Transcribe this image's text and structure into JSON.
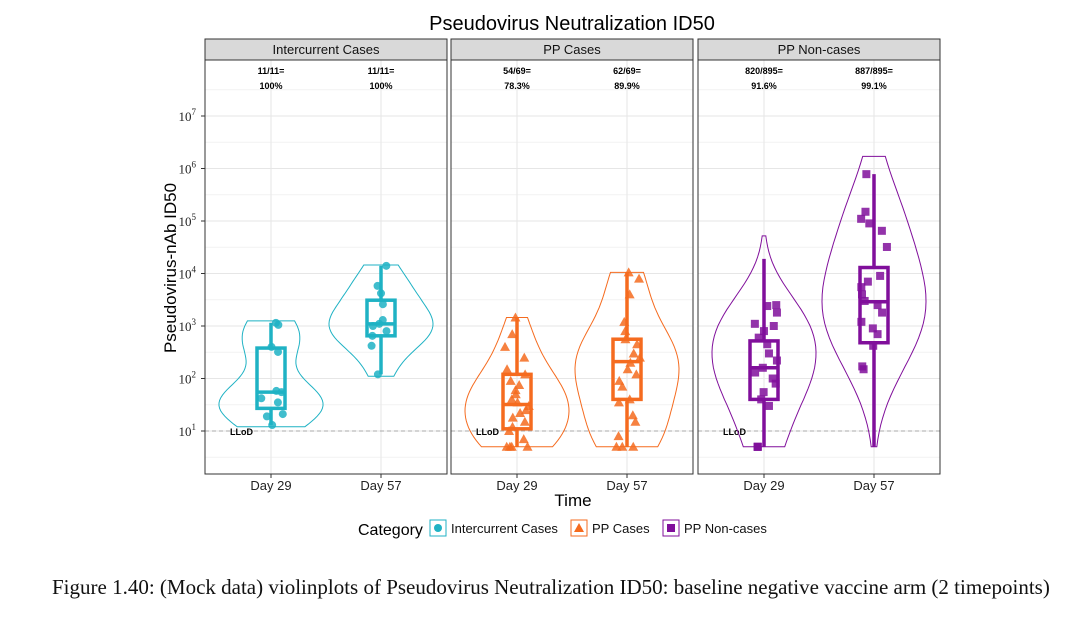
{
  "figure": {
    "caption": "Figure 1.40: (Mock data) violinplots of Pseudovirus Neutralization ID50: baseline negative vaccine arm (2 timepoints)"
  },
  "chart_data": {
    "type": "violin",
    "title": "Pseudovirus Neutralization ID50",
    "xlabel": "Time",
    "ylabel": "Pseudovirus-nAb ID50",
    "y_scale": "log10",
    "ylim": [
      3.5,
      30000000
    ],
    "y_ticks": [
      {
        "value": 10,
        "label": "10",
        "exp": "1"
      },
      {
        "value": 100,
        "label": "10",
        "exp": "2"
      },
      {
        "value": 1000,
        "label": "10",
        "exp": "3"
      },
      {
        "value": 10000,
        "label": "10",
        "exp": "4"
      },
      {
        "value": 100000,
        "label": "10",
        "exp": "5"
      },
      {
        "value": 1000000,
        "label": "10",
        "exp": "6"
      },
      {
        "value": 10000000,
        "label": "10",
        "exp": "7"
      }
    ],
    "categories": [
      "Day 29",
      "Day 57"
    ],
    "lod": {
      "value": 10,
      "label": "LLoD"
    },
    "grid": true,
    "legend": {
      "title": "Category",
      "position": "bottom",
      "entries": [
        {
          "name": "Intercurrent Cases",
          "color": "#1fb2c4",
          "shape": "circle"
        },
        {
          "name": "PP Cases",
          "color": "#f56b1f",
          "shape": "triangle"
        },
        {
          "name": "PP Non-cases",
          "color": "#800f9b",
          "shape": "square"
        }
      ]
    },
    "panels": [
      {
        "name": "Intercurrent Cases",
        "color": "#1fb2c4",
        "shape": "circle",
        "groups": [
          {
            "x": "Day 29",
            "resp_line1": "11/11=",
            "resp_line2": "100%",
            "box": {
              "min": 13,
              "q1": 27,
              "median": 55,
              "q3": 380,
              "max": 1150
            },
            "violin_range": [
              12,
              1250
            ],
            "points": [
              13,
              19,
              21,
              35,
              42,
              55,
              58,
              320,
              400,
              1050,
              1150
            ]
          },
          {
            "x": "Day 57",
            "resp_line1": "11/11=",
            "resp_line2": "100%",
            "box": {
              "min": 120,
              "q1": 650,
              "median": 1100,
              "q3": 3100,
              "max": 14000
            },
            "violin_range": [
              110,
              14500
            ],
            "points": [
              120,
              420,
              650,
              800,
              1000,
              1100,
              1300,
              2600,
              4200,
              5800,
              14000
            ]
          }
        ]
      },
      {
        "name": "PP Cases",
        "color": "#f56b1f",
        "shape": "triangle",
        "groups": [
          {
            "x": "Day 29",
            "resp_line1": "54/69=",
            "resp_line2": "78.3%",
            "box": {
              "min": 5,
              "q1": 11,
              "median": 32,
              "q3": 120,
              "max": 1450
            },
            "violin_range": [
              5,
              1450
            ],
            "points": [
              5,
              5,
              5,
              5,
              7,
              10,
              12,
              15,
              18,
              22,
              25,
              30,
              35,
              40,
              50,
              60,
              75,
              90,
              120,
              150,
              250,
              400,
              700,
              1450
            ]
          },
          {
            "x": "Day 57",
            "resp_line1": "62/69=",
            "resp_line2": "89.9%",
            "box": {
              "min": 5,
              "q1": 40,
              "median": 210,
              "q3": 560,
              "max": 10500
            },
            "violin_range": [
              5,
              10500
            ],
            "points": [
              5,
              5,
              5,
              8,
              15,
              20,
              35,
              40,
              70,
              90,
              120,
              150,
              200,
              250,
              300,
              450,
              560,
              800,
              1200,
              4000,
              8000,
              10500
            ]
          }
        ]
      },
      {
        "name": "PP Non-cases",
        "color": "#800f9b",
        "shape": "square",
        "groups": [
          {
            "x": "Day 29",
            "resp_line1": "820/895=",
            "resp_line2": "91.6%",
            "box": {
              "min": 5,
              "q1": 40,
              "median": 160,
              "q3": 520,
              "max": 19000
            },
            "violin_range": [
              5,
              52000
            ],
            "points": [
              5,
              5,
              5,
              30,
              40,
              55,
              80,
              100,
              130,
              160,
              220,
              300,
              450,
              600,
              800,
              1000,
              1100,
              1800,
              2400,
              2500
            ]
          },
          {
            "x": "Day 57",
            "resp_line1": "887/895=",
            "resp_line2": "99.1%",
            "box": {
              "min": 5,
              "q1": 480,
              "median": 2900,
              "q3": 13000,
              "max": 780000
            },
            "violin_range": [
              5,
              1700000
            ],
            "points": [
              150,
              170,
              420,
              700,
              900,
              1200,
              1800,
              2500,
              3000,
              4000,
              5500,
              7000,
              9000,
              32000,
              65000,
              90000,
              110000,
              150000,
              780000
            ]
          }
        ]
      }
    ]
  }
}
